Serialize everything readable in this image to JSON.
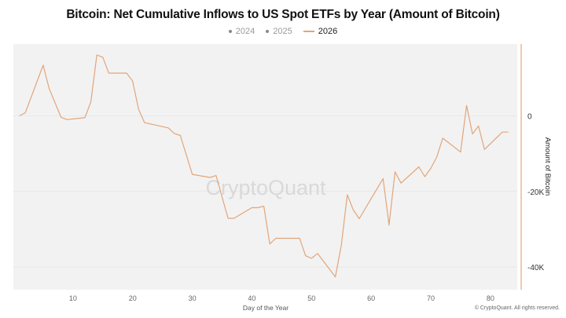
{
  "chart_data": {
    "type": "line",
    "title": "Bitcoin: Net Cumulative Inflows to US Spot ETFs by Year (Amount of Bitcoin)",
    "xlabel": "Day of the Year",
    "ylabel": "Amount of Bitcoin",
    "xlim": [
      0,
      84.5
    ],
    "ylim": [
      -46000,
      19000
    ],
    "x_ticks": [
      10,
      20,
      30,
      40,
      50,
      60,
      70,
      80
    ],
    "y_ticks": [
      {
        "value": 0,
        "label": "0"
      },
      {
        "value": -20000,
        "label": "-20K"
      },
      {
        "value": -40000,
        "label": "-40K"
      }
    ],
    "y_axis_side": "right",
    "legend_position": "top",
    "watermark": "CryptoQuant",
    "legend": [
      {
        "name": "2024",
        "marker": "dot",
        "active": false
      },
      {
        "name": "2025",
        "marker": "dot",
        "active": false
      },
      {
        "name": "2026",
        "marker": "line",
        "active": true
      }
    ],
    "series": [
      {
        "name": "2026",
        "color": "#e2a57a",
        "x": [
          1,
          2,
          5,
          6,
          8,
          9,
          12,
          13,
          14,
          15,
          16,
          19,
          20,
          21,
          22,
          26,
          27,
          28,
          30,
          33,
          34,
          36,
          37,
          40,
          41,
          42,
          43,
          44,
          48,
          49,
          50,
          51,
          54,
          55,
          56,
          57,
          58,
          62,
          63,
          64,
          65,
          68,
          69,
          70,
          71,
          72,
          75,
          76,
          77,
          78,
          79,
          82,
          83
        ],
        "y": [
          0,
          800,
          13400,
          7200,
          -400,
          -1000,
          -500,
          3700,
          16100,
          15500,
          11300,
          11300,
          9200,
          1700,
          -1800,
          -3200,
          -4700,
          -5200,
          -15500,
          -16300,
          -15800,
          -27100,
          -27100,
          -24300,
          -24300,
          -23900,
          -33900,
          -32400,
          -32400,
          -37000,
          -37700,
          -36400,
          -42600,
          -34200,
          -20900,
          -24900,
          -27200,
          -16600,
          -28900,
          -14800,
          -17800,
          -13500,
          -16100,
          -13900,
          -10900,
          -5900,
          -9600,
          2700,
          -4800,
          -2700,
          -8900,
          -4300,
          -4300
        ]
      }
    ]
  },
  "colors": {
    "plot_bg": "#f2f2f2",
    "line": "#e2a57a",
    "axis": "#e2a57a"
  },
  "copyright": "© CryptoQuant. All rights reserved."
}
